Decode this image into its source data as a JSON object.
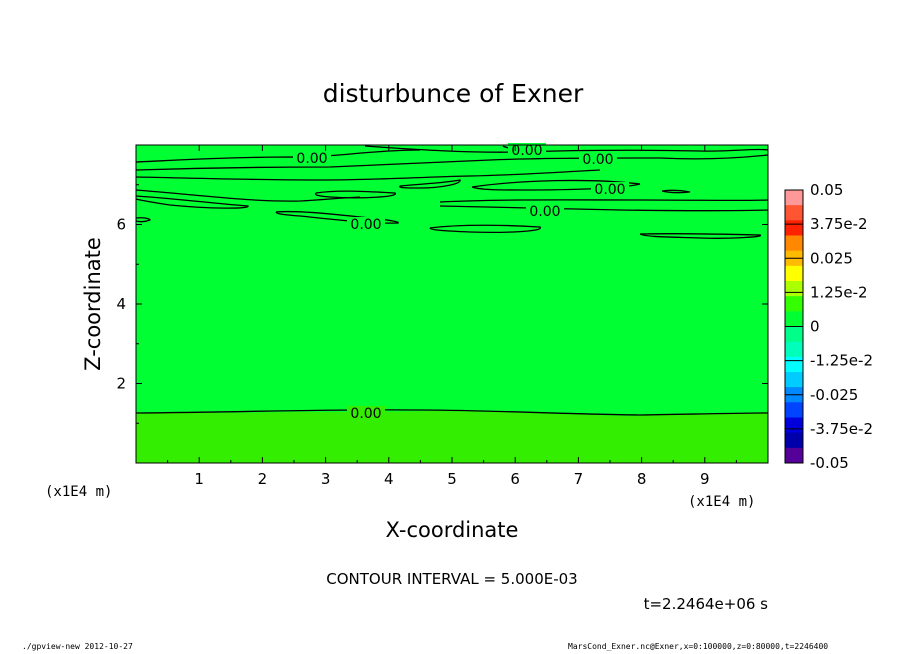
{
  "chart_data": {
    "type": "heatmap",
    "title": "disturbunce of Exner",
    "xlabel": "X-coordinate",
    "ylabel": "Z-coordinate",
    "x_unit": "(x1E4 m)",
    "y_unit": "(x1E4 m)",
    "xlim": [
      0,
      100000
    ],
    "ylim": [
      0,
      80000
    ],
    "x_ticks": [
      "1",
      "2",
      "3",
      "4",
      "5",
      "6",
      "7",
      "8",
      "9"
    ],
    "y_ticks": [
      "2",
      "4",
      "6"
    ],
    "contour_interval_text": "CONTOUR INTERVAL = 5.000E-03",
    "time_text": "t=2.2464e+06 s",
    "contour_labels": [
      "0.00",
      "0.00",
      "0.00",
      "0.00",
      "0.00",
      "0.00",
      "0.00"
    ],
    "fill_color_upper": "#00ff33",
    "fill_color_lower": "#33ee00",
    "colorbar": {
      "labels": [
        "0.05",
        "3.75e-2",
        "0.025",
        "1.25e-2",
        "0",
        "-1.25e-2",
        "-0.025",
        "-3.75e-2",
        "-0.05"
      ],
      "colors": [
        "#ff9999",
        "#ff5533",
        "#ff2200",
        "#ff8800",
        "#ffbb00",
        "#ffff00",
        "#aaff00",
        "#33ff00",
        "#00ff33",
        "#00ff88",
        "#00ffbb",
        "#00ffff",
        "#00ccff",
        "#0088ff",
        "#0044ff",
        "#0000dd",
        "#0000aa",
        "#550099"
      ]
    }
  },
  "footer": {
    "left": "./gpview-new  2012-10-27",
    "right": "MarsCond_Exner.nc@Exner,x=0:100000,z=0:80000,t=2246400"
  }
}
